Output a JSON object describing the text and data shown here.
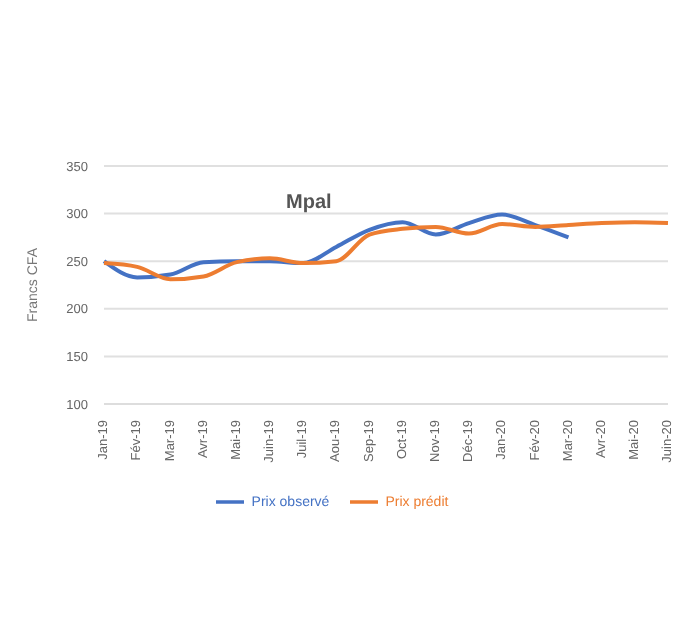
{
  "chart_data": {
    "type": "line",
    "title": "Mpal",
    "ylabel": "Francs CFA",
    "categories": [
      "Jan-19",
      "Fév-19",
      "Mar-19",
      "Avr-19",
      "Mai-19",
      "Juin-19",
      "Juil-19",
      "Aou-19",
      "Sep-19",
      "Oct-19",
      "Nov-19",
      "Déc-19",
      "Jan-20",
      "Fév-20",
      "Mar-20",
      "Avr-20",
      "Mai-20",
      "Juin-20"
    ],
    "series": [
      {
        "name": "Prix observé",
        "color": "#4472c4",
        "values": [
          250,
          233,
          236,
          249,
          250,
          250,
          248,
          265,
          283,
          291,
          278,
          290,
          299,
          288,
          275,
          null,
          null,
          null
        ]
      },
      {
        "name": "Prix prédit",
        "color": "#ed7d31",
        "values": [
          248,
          244,
          231,
          234,
          249,
          253,
          248,
          250,
          278,
          284,
          286,
          279,
          289,
          286,
          288,
          290,
          291,
          290
        ]
      }
    ],
    "ylim": [
      100,
      350
    ],
    "yticks": [
      100,
      150,
      200,
      250,
      300,
      350
    ],
    "grid": "y",
    "legend": "bottom",
    "marker": "none"
  }
}
